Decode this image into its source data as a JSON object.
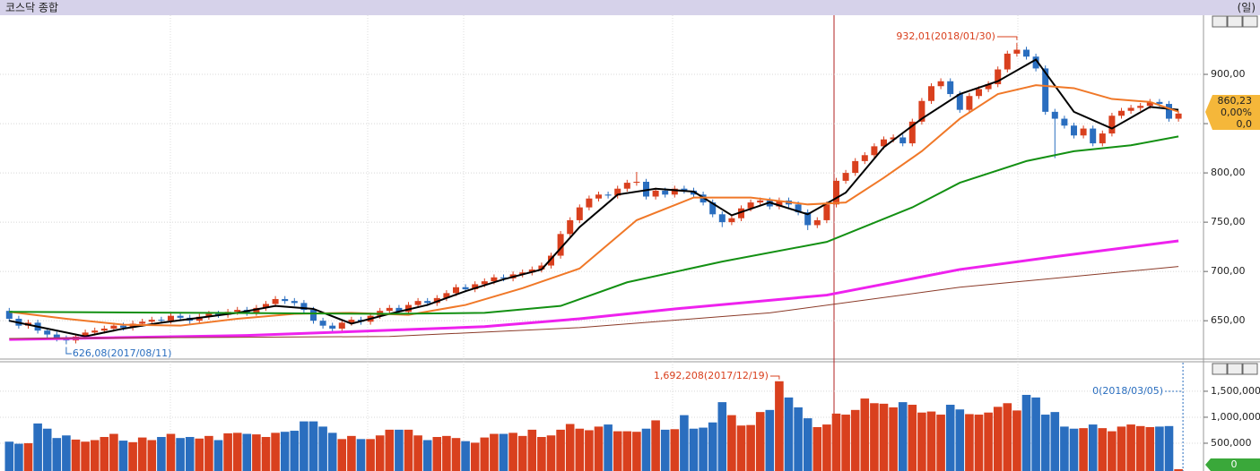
{
  "window": {
    "title": "코스닥 종합",
    "period": "(일)"
  },
  "chart_data": [
    {
      "type": "candlestick",
      "open": [
        660,
        652,
        645,
        648,
        640,
        636,
        632,
        630,
        634,
        638,
        640,
        642,
        645,
        643,
        647,
        649,
        651,
        650,
        655,
        653,
        650,
        654,
        657,
        656,
        659,
        661,
        658,
        663,
        667,
        672,
        670,
        668,
        661,
        650,
        645,
        642,
        648,
        651,
        649,
        655,
        660,
        663,
        659,
        666,
        670,
        668,
        673,
        678,
        684,
        682,
        687,
        690,
        694,
        693,
        697,
        699,
        702,
        706,
        716,
        738,
        752,
        765,
        774,
        778,
        777,
        784,
        790,
        791,
        776,
        782,
        778,
        784,
        782,
        778,
        770,
        758,
        750,
        754,
        764,
        770,
        772,
        766,
        772,
        768,
        760,
        747,
        752,
        768,
        792,
        800,
        812,
        818,
        827,
        834,
        836,
        830,
        852,
        873,
        888,
        893,
        880,
        864,
        878,
        885,
        890,
        905,
        921,
        925,
        918,
        906,
        862,
        855,
        848,
        838,
        845,
        830,
        840,
        858,
        863,
        866,
        868,
        872,
        870,
        855
      ],
      "high": [
        663,
        655,
        651,
        651,
        643,
        639,
        635,
        637,
        641,
        643,
        645,
        648,
        648,
        650,
        652,
        654,
        654,
        658,
        658,
        656,
        657,
        660,
        660,
        662,
        664,
        664,
        666,
        670,
        675,
        675,
        673,
        671,
        664,
        653,
        648,
        651,
        654,
        654,
        658,
        663,
        666,
        666,
        669,
        673,
        673,
        676,
        681,
        687,
        687,
        690,
        693,
        697,
        697,
        700,
        702,
        705,
        709,
        719,
        741,
        755,
        768,
        777,
        781,
        781,
        787,
        793,
        801,
        794,
        785,
        785,
        787,
        787,
        785,
        781,
        773,
        761,
        757,
        767,
        773,
        775,
        775,
        775,
        775,
        771,
        763,
        755,
        771,
        795,
        803,
        815,
        821,
        830,
        837,
        839,
        839,
        855,
        876,
        891,
        896,
        896,
        883,
        881,
        888,
        893,
        908,
        924,
        932.01,
        928,
        921,
        909,
        865,
        858,
        851,
        848,
        848,
        843,
        861,
        866,
        869,
        871,
        875,
        875,
        873,
        863
      ],
      "low": [
        649,
        642,
        642,
        637,
        633,
        629,
        626.08,
        627,
        631,
        635,
        637,
        639,
        640,
        640,
        644,
        646,
        647,
        647,
        650,
        647,
        647,
        651,
        653,
        653,
        656,
        655,
        655,
        660,
        664,
        667,
        665,
        658,
        647,
        642,
        639,
        639,
        645,
        646,
        646,
        652,
        657,
        656,
        656,
        663,
        665,
        665,
        670,
        675,
        679,
        679,
        684,
        687,
        690,
        690,
        694,
        696,
        699,
        703,
        713,
        735,
        749,
        762,
        771,
        774,
        774,
        781,
        787,
        773,
        773,
        775,
        775,
        779,
        775,
        767,
        755,
        745,
        747,
        751,
        761,
        767,
        763,
        763,
        765,
        757,
        742,
        744,
        749,
        765,
        789,
        797,
        809,
        815,
        824,
        831,
        827,
        827,
        849,
        870,
        885,
        877,
        861,
        861,
        875,
        882,
        887,
        902,
        918,
        915,
        903,
        859,
        815,
        845,
        835,
        835,
        827,
        827,
        837,
        855,
        860,
        863,
        865,
        867,
        852,
        852
      ],
      "close": [
        652,
        645,
        648,
        640,
        636,
        632,
        630,
        634,
        638,
        640,
        642,
        645,
        643,
        647,
        649,
        651,
        650,
        655,
        653,
        650,
        654,
        657,
        656,
        659,
        661,
        658,
        663,
        667,
        672,
        670,
        668,
        661,
        650,
        645,
        642,
        648,
        651,
        649,
        655,
        660,
        663,
        659,
        666,
        670,
        668,
        673,
        678,
        684,
        682,
        687,
        690,
        694,
        693,
        697,
        699,
        702,
        706,
        716,
        738,
        752,
        765,
        774,
        778,
        777,
        784,
        790,
        791,
        776,
        782,
        778,
        784,
        782,
        778,
        770,
        758,
        750,
        754,
        764,
        770,
        772,
        766,
        772,
        768,
        760,
        747,
        752,
        768,
        792,
        800,
        812,
        818,
        827,
        834,
        836,
        830,
        852,
        873,
        888,
        893,
        880,
        864,
        878,
        885,
        890,
        905,
        921,
        925,
        918,
        906,
        862,
        855,
        848,
        838,
        845,
        830,
        840,
        858,
        863,
        866,
        868,
        872,
        870,
        855,
        860.23
      ],
      "up_color": "#d9401e",
      "down_color": "#2a6ebf",
      "lines": [
        {
          "color": "#000000",
          "x": [
            0,
            4,
            8,
            12,
            16,
            20,
            24,
            28,
            32,
            36,
            40,
            44,
            48,
            52,
            56,
            60,
            64,
            68,
            72,
            76,
            80,
            84,
            88,
            92,
            96,
            100,
            104,
            108,
            112,
            116,
            120,
            123
          ],
          "values": [
            650,
            642,
            634,
            642,
            648,
            653,
            658,
            665,
            662,
            647,
            657,
            666,
            680,
            692,
            702,
            745,
            778,
            784,
            781,
            757,
            770,
            758,
            780,
            826,
            855,
            880,
            893,
            915,
            862,
            845,
            867,
            864
          ]
        },
        {
          "color": "#f07828",
          "x": [
            0,
            6,
            12,
            18,
            24,
            30,
            36,
            42,
            48,
            54,
            60,
            66,
            72,
            78,
            84,
            88,
            92,
            96,
            100,
            104,
            108,
            112,
            116,
            120,
            123
          ],
          "values": [
            659,
            652,
            646,
            645,
            652,
            657,
            658,
            656,
            666,
            683,
            703,
            752,
            775,
            775,
            768,
            770,
            795,
            822,
            855,
            880,
            889,
            886,
            875,
            872,
            862
          ]
        },
        {
          "color": "#139013",
          "x": [
            0,
            20,
            40,
            50,
            58,
            65,
            75,
            86,
            95,
            100,
            107,
            112,
            118,
            123
          ],
          "values": [
            659,
            658,
            657,
            658,
            665,
            689,
            710,
            730,
            765,
            790,
            812,
            822,
            828,
            837
          ]
        },
        {
          "color": "#ee22ee",
          "x": [
            0,
            25,
            50,
            60,
            70,
            86,
            100,
            110,
            123
          ],
          "values": [
            631,
            635,
            644,
            652,
            662,
            676,
            702,
            715,
            731
          ]
        },
        {
          "color": "#8a3a28",
          "x": [
            0,
            40,
            60,
            80,
            100,
            123
          ],
          "values": [
            632,
            634,
            643,
            658,
            684,
            705
          ]
        }
      ],
      "ylim": [
        612,
        960
      ],
      "yticks": [
        {
          "value": 650,
          "label": "650,00"
        },
        {
          "value": 700,
          "label": "700,00"
        },
        {
          "value": 750,
          "label": "750,00"
        },
        {
          "value": 800,
          "label": "800,00"
        },
        {
          "value": 850,
          "label": ""
        },
        {
          "value": 900,
          "label": "900,00"
        }
      ],
      "grid": true,
      "annotations": [
        "932,01(2018/01/30)",
        "626,08(2017/08/11)"
      ],
      "last_price": {
        "price": "860,23",
        "change_pct": "0,00%",
        "change": "0,0"
      }
    },
    {
      "type": "bar",
      "values": [
        530000,
        490000,
        500000,
        880000,
        780000,
        600000,
        650000,
        570000,
        530000,
        560000,
        620000,
        680000,
        550000,
        520000,
        610000,
        560000,
        620000,
        680000,
        600000,
        620000,
        590000,
        640000,
        560000,
        690000,
        700000,
        680000,
        670000,
        620000,
        700000,
        720000,
        740000,
        920000,
        920000,
        820000,
        700000,
        580000,
        640000,
        580000,
        580000,
        650000,
        760000,
        760000,
        760000,
        650000,
        560000,
        620000,
        640000,
        600000,
        540000,
        510000,
        610000,
        680000,
        680000,
        700000,
        640000,
        760000,
        620000,
        650000,
        760000,
        870000,
        780000,
        750000,
        820000,
        860000,
        730000,
        730000,
        720000,
        780000,
        940000,
        760000,
        770000,
        1040000,
        780000,
        800000,
        900000,
        1290000,
        1040000,
        840000,
        850000,
        1100000,
        1140000,
        1692208,
        1380000,
        1190000,
        980000,
        810000,
        860000,
        1070000,
        1050000,
        1140000,
        1360000,
        1270000,
        1260000,
        1190000,
        1290000,
        1240000,
        1090000,
        1110000,
        1050000,
        1240000,
        1150000,
        1060000,
        1050000,
        1090000,
        1200000,
        1270000,
        1130000,
        1430000,
        1380000,
        1050000,
        1100000,
        820000,
        780000,
        790000,
        860000,
        790000,
        730000,
        820000,
        860000,
        830000,
        810000,
        820000,
        830000,
        0
      ],
      "ylim": [
        0,
        2050000
      ],
      "yticks": [
        {
          "value": 500000,
          "label": "500,000"
        },
        {
          "value": 1000000,
          "label": "1,000,000"
        },
        {
          "value": 1500000,
          "label": "1,500,000"
        }
      ],
      "grid": true,
      "annotations": [
        "1,692,208(2017/12/19)",
        "0(2018/03/05)"
      ]
    }
  ]
}
